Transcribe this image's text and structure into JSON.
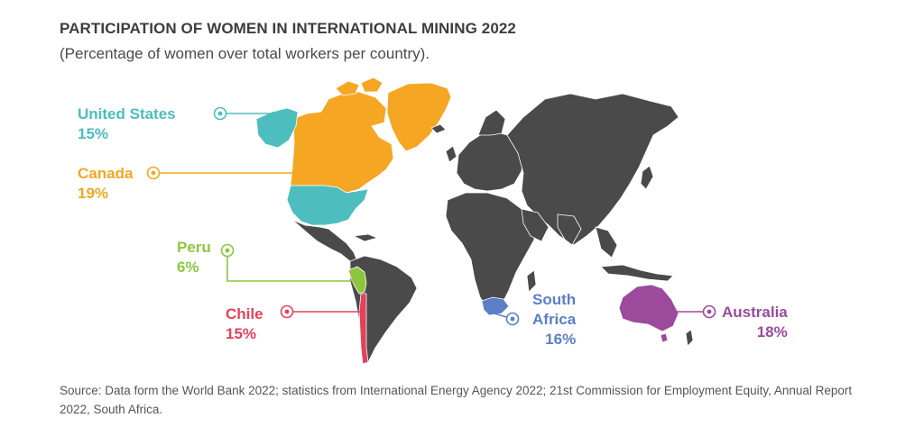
{
  "title": "PARTICIPATION OF WOMEN IN INTERNATIONAL MINING 2022",
  "subtitle": "(Percentage of women over total workers per country).",
  "map_colors": {
    "land": "#4a4a4a",
    "border": "#ffffff"
  },
  "countries": [
    {
      "name": "United States",
      "value": "15%",
      "color": "#4dbdbe"
    },
    {
      "name": "Canada",
      "value": "19%",
      "color": "#f5a623"
    },
    {
      "name": "Peru",
      "value": "6%",
      "color": "#8cc63f"
    },
    {
      "name": "Chile",
      "value": "15%",
      "color": "#e2425a"
    },
    {
      "name_line1": "South",
      "name_line2": "Africa",
      "value": "16%",
      "color": "#5a7fc7"
    },
    {
      "name": "Australia",
      "value": "18%",
      "color": "#9b4a9c"
    }
  ],
  "source": "Source: Data form the World Bank 2022; statistics from International Energy Agency 2022; 21st Commission for Employment Equity, Annual Report 2022, South Africa."
}
